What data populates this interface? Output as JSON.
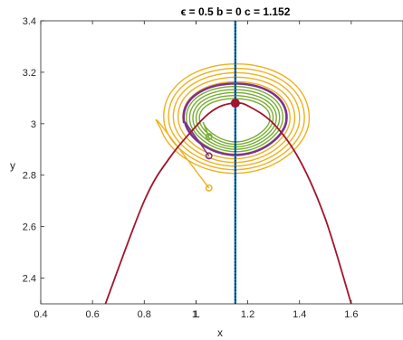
{
  "chart_data": {
    "type": "line",
    "title": "ϵ = 0.5  b = 0  c = 1.152",
    "xlabel": "x",
    "ylabel": "y",
    "xlim": [
      0.4,
      1.8
    ],
    "ylim": [
      2.3,
      3.4
    ],
    "x_ticks": [
      "0.4",
      "0.6",
      "0.8",
      "1",
      "1.2",
      "1.4",
      "1.6",
      "1."
    ],
    "y_ticks": [
      "2.4",
      "2.6",
      "2.8",
      "3",
      "3.2",
      "3.4"
    ],
    "grid": false,
    "legend": "none",
    "colors": {
      "parabola": "#A2142F",
      "vertical_line": "#0072BD",
      "vertical_dots": "#1a1a1a",
      "orange": "#EDB120",
      "green": "#77AC30",
      "purple": "#7E2F8E"
    },
    "nullcline_parabola": {
      "x": [
        0.65,
        0.8,
        0.9,
        1.0,
        1.05,
        1.1,
        1.152,
        1.2,
        1.3,
        1.4,
        1.5,
        1.6
      ],
      "y": [
        2.3,
        2.7,
        2.87,
        2.99,
        3.04,
        3.07,
        3.08,
        3.07,
        3.0,
        2.86,
        2.63,
        2.3
      ]
    },
    "vertical_nullcline_x": 1.152,
    "equilibrium": {
      "x": 1.152,
      "y": 3.08
    },
    "start_points": [
      {
        "x": 1.05,
        "y": 2.95,
        "series": "green"
      },
      {
        "x": 1.05,
        "y": 2.875,
        "series": "purple"
      },
      {
        "x": 1.05,
        "y": 2.75,
        "series": "orange"
      }
    ]
  }
}
